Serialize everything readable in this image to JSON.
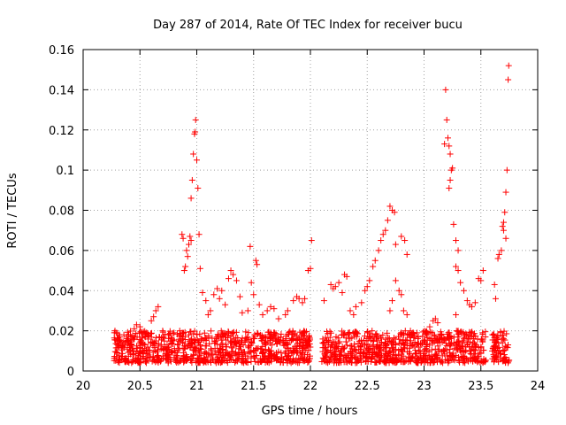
{
  "chart_data": {
    "type": "scatter",
    "title": "Day 287 of 2014, Rate Of TEC Index for receiver bucu",
    "xlabel": "GPS time / hours",
    "ylabel": "ROTI / TECUs",
    "xlim": [
      20,
      24
    ],
    "ylim": [
      0,
      0.16
    ],
    "xticks": [
      "20",
      "20.5",
      "21",
      "21.5",
      "22",
      "22.5",
      "23",
      "23.5",
      "24"
    ],
    "yticks": [
      "0",
      "0.02",
      "0.04",
      "0.06",
      "0.08",
      "0.1",
      "0.12",
      "0.14",
      "0.16"
    ],
    "xtick_values": [
      20,
      20.5,
      21,
      21.5,
      22,
      22.5,
      23,
      23.5,
      24
    ],
    "ytick_values": [
      0,
      0.02,
      0.04,
      0.06,
      0.08,
      0.1,
      0.12,
      0.14,
      0.16
    ],
    "grid": true,
    "marker": "+",
    "color": "#ff0000",
    "series": [
      {
        "name": "ROTI",
        "points": [
          [
            20.28,
            0.02
          ],
          [
            20.29,
            0.019
          ],
          [
            20.3,
            0.016
          ],
          [
            20.32,
            0.014
          ],
          [
            20.35,
            0.012
          ],
          [
            20.38,
            0.015
          ],
          [
            20.4,
            0.018
          ],
          [
            20.42,
            0.013
          ],
          [
            20.45,
            0.021
          ],
          [
            20.47,
            0.023
          ],
          [
            20.5,
            0.022
          ],
          [
            20.53,
            0.019
          ],
          [
            20.6,
            0.025
          ],
          [
            20.62,
            0.027
          ],
          [
            20.64,
            0.03
          ],
          [
            20.66,
            0.032
          ],
          [
            20.7,
            0.02
          ],
          [
            20.75,
            0.018
          ],
          [
            20.8,
            0.019
          ],
          [
            20.85,
            0.02
          ],
          [
            20.87,
            0.068
          ],
          [
            20.88,
            0.066
          ],
          [
            20.89,
            0.05
          ],
          [
            20.9,
            0.052
          ],
          [
            20.91,
            0.06
          ],
          [
            20.92,
            0.057
          ],
          [
            20.93,
            0.063
          ],
          [
            20.94,
            0.067
          ],
          [
            20.95,
            0.065
          ],
          [
            20.95,
            0.086
          ],
          [
            20.96,
            0.095
          ],
          [
            20.97,
            0.108
          ],
          [
            20.98,
            0.118
          ],
          [
            20.985,
            0.119
          ],
          [
            20.99,
            0.125
          ],
          [
            21.0,
            0.105
          ],
          [
            21.01,
            0.091
          ],
          [
            21.02,
            0.068
          ],
          [
            21.03,
            0.051
          ],
          [
            21.05,
            0.039
          ],
          [
            21.08,
            0.035
          ],
          [
            21.1,
            0.028
          ],
          [
            21.12,
            0.03
          ],
          [
            21.15,
            0.038
          ],
          [
            21.18,
            0.041
          ],
          [
            21.2,
            0.036
          ],
          [
            21.22,
            0.04
          ],
          [
            21.25,
            0.033
          ],
          [
            21.28,
            0.046
          ],
          [
            21.3,
            0.05
          ],
          [
            21.32,
            0.048
          ],
          [
            21.35,
            0.045
          ],
          [
            21.38,
            0.037
          ],
          [
            21.4,
            0.029
          ],
          [
            21.45,
            0.03
          ],
          [
            21.47,
            0.062
          ],
          [
            21.48,
            0.044
          ],
          [
            21.5,
            0.038
          ],
          [
            21.52,
            0.055
          ],
          [
            21.53,
            0.053
          ],
          [
            21.55,
            0.033
          ],
          [
            21.58,
            0.028
          ],
          [
            21.62,
            0.03
          ],
          [
            21.65,
            0.032
          ],
          [
            21.68,
            0.031
          ],
          [
            21.72,
            0.026
          ],
          [
            21.78,
            0.028
          ],
          [
            21.8,
            0.03
          ],
          [
            21.85,
            0.035
          ],
          [
            21.88,
            0.037
          ],
          [
            21.9,
            0.036
          ],
          [
            21.93,
            0.034
          ],
          [
            21.95,
            0.036
          ],
          [
            21.98,
            0.05
          ],
          [
            22.0,
            0.051
          ],
          [
            22.01,
            0.065
          ],
          [
            22.12,
            0.035
          ],
          [
            22.18,
            0.043
          ],
          [
            22.2,
            0.041
          ],
          [
            22.22,
            0.042
          ],
          [
            22.25,
            0.044
          ],
          [
            22.28,
            0.039
          ],
          [
            22.3,
            0.048
          ],
          [
            22.32,
            0.047
          ],
          [
            22.35,
            0.03
          ],
          [
            22.38,
            0.028
          ],
          [
            22.4,
            0.032
          ],
          [
            22.45,
            0.034
          ],
          [
            22.48,
            0.04
          ],
          [
            22.5,
            0.042
          ],
          [
            22.52,
            0.045
          ],
          [
            22.55,
            0.052
          ],
          [
            22.57,
            0.055
          ],
          [
            22.6,
            0.06
          ],
          [
            22.62,
            0.065
          ],
          [
            22.64,
            0.068
          ],
          [
            22.66,
            0.07
          ],
          [
            22.68,
            0.075
          ],
          [
            22.7,
            0.082
          ],
          [
            22.72,
            0.08
          ],
          [
            22.74,
            0.079
          ],
          [
            22.75,
            0.063
          ],
          [
            22.7,
            0.03
          ],
          [
            22.72,
            0.035
          ],
          [
            22.75,
            0.045
          ],
          [
            22.78,
            0.04
          ],
          [
            22.8,
            0.038
          ],
          [
            22.82,
            0.03
          ],
          [
            22.85,
            0.028
          ],
          [
            22.88,
            0.02
          ],
          [
            22.8,
            0.067
          ],
          [
            22.83,
            0.065
          ],
          [
            22.85,
            0.058
          ],
          [
            22.9,
            0.018
          ],
          [
            22.95,
            0.017
          ],
          [
            23.0,
            0.015
          ],
          [
            23.05,
            0.022
          ],
          [
            23.08,
            0.025
          ],
          [
            23.1,
            0.026
          ],
          [
            23.12,
            0.024
          ],
          [
            23.18,
            0.113
          ],
          [
            23.19,
            0.14
          ],
          [
            23.2,
            0.125
          ],
          [
            23.21,
            0.116
          ],
          [
            23.22,
            0.112
          ],
          [
            23.23,
            0.108
          ],
          [
            23.24,
            0.1
          ],
          [
            23.22,
            0.091
          ],
          [
            23.23,
            0.095
          ],
          [
            23.25,
            0.101
          ],
          [
            23.26,
            0.073
          ],
          [
            23.28,
            0.065
          ],
          [
            23.3,
            0.06
          ],
          [
            23.28,
            0.052
          ],
          [
            23.3,
            0.05
          ],
          [
            23.32,
            0.044
          ],
          [
            23.35,
            0.04
          ],
          [
            23.38,
            0.035
          ],
          [
            23.4,
            0.033
          ],
          [
            23.42,
            0.032
          ],
          [
            23.45,
            0.034
          ],
          [
            23.48,
            0.046
          ],
          [
            23.5,
            0.045
          ],
          [
            23.52,
            0.05
          ],
          [
            23.28,
            0.028
          ],
          [
            23.3,
            0.02
          ],
          [
            23.35,
            0.016
          ],
          [
            23.62,
            0.043
          ],
          [
            23.63,
            0.036
          ],
          [
            23.65,
            0.056
          ],
          [
            23.66,
            0.058
          ],
          [
            23.68,
            0.06
          ],
          [
            23.69,
            0.072
          ],
          [
            23.7,
            0.074
          ],
          [
            23.71,
            0.079
          ],
          [
            23.72,
            0.089
          ],
          [
            23.73,
            0.1
          ],
          [
            23.74,
            0.145
          ],
          [
            23.745,
            0.152
          ],
          [
            23.7,
            0.07
          ],
          [
            23.72,
            0.066
          ]
        ]
      }
    ]
  }
}
